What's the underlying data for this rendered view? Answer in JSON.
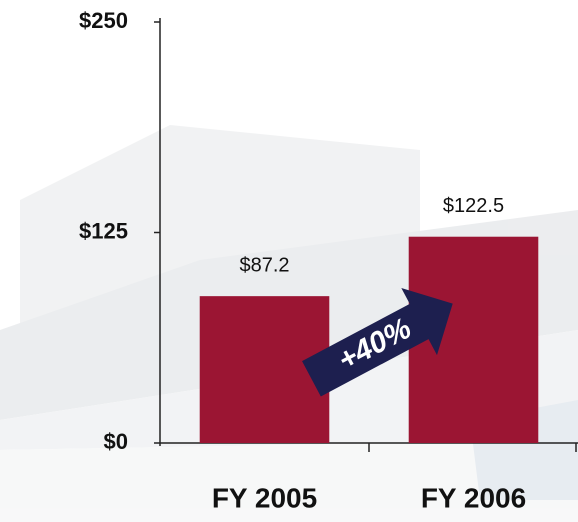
{
  "chart_data": {
    "type": "bar",
    "categories": [
      "FY 2005",
      "FY 2006"
    ],
    "values": [
      87.2,
      122.5
    ],
    "value_labels": [
      "$87.2",
      "$122.5"
    ],
    "color": "#9b1533",
    "ylim": [
      0,
      250
    ],
    "yticks": [
      {
        "value": 0,
        "label": "$0"
      },
      {
        "value": 125,
        "label": "$125"
      },
      {
        "value": 250,
        "label": "$250"
      }
    ],
    "annotation": "+40%"
  }
}
